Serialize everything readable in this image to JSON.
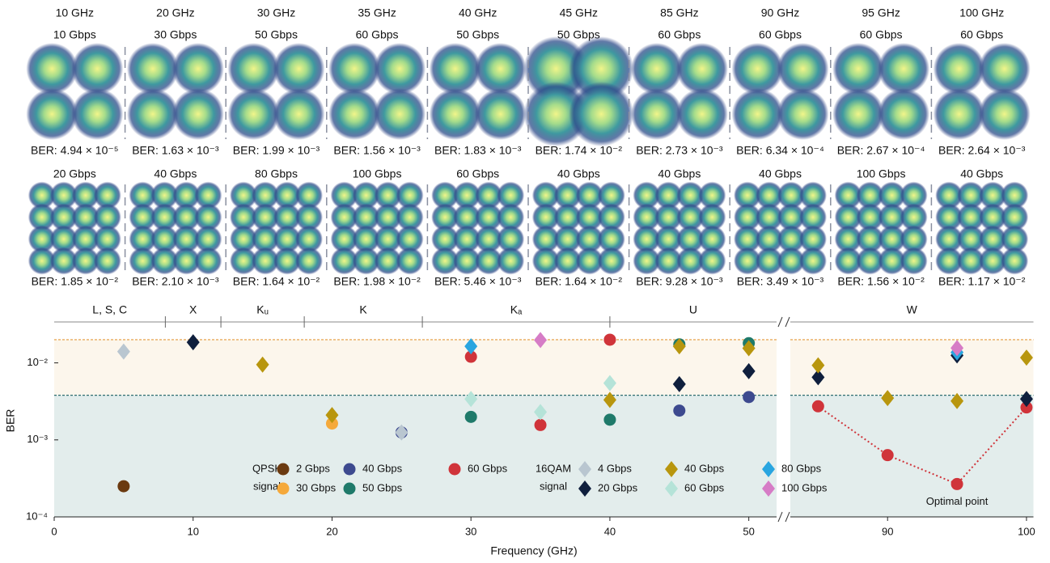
{
  "panels": {
    "row1": [
      {
        "freq": "10 GHz",
        "rate": "10 Gbps",
        "ber": "BER: 4.94 × 10⁻⁵"
      },
      {
        "freq": "20 GHz",
        "rate": "30 Gbps",
        "ber": "BER: 1.63 × 10⁻³"
      },
      {
        "freq": "30 GHz",
        "rate": "50 Gbps",
        "ber": "BER: 1.99 × 10⁻³"
      },
      {
        "freq": "35 GHz",
        "rate": "60 Gbps",
        "ber": "BER: 1.56 × 10⁻³"
      },
      {
        "freq": "40 GHz",
        "rate": "50 Gbps",
        "ber": "BER: 1.83 × 10⁻³"
      },
      {
        "freq": "45 GHz",
        "rate": "50 Gbps",
        "ber": "BER: 1.74 × 10⁻²"
      },
      {
        "freq": "85 GHz",
        "rate": "60 Gbps",
        "ber": "BER: 2.73 × 10⁻³"
      },
      {
        "freq": "90 GHz",
        "rate": "60 Gbps",
        "ber": "BER: 6.34 × 10⁻⁴"
      },
      {
        "freq": "95 GHz",
        "rate": "60 Gbps",
        "ber": "BER: 2.67 × 10⁻⁴"
      },
      {
        "freq": "100 GHz",
        "rate": "60 Gbps",
        "ber": "BER: 2.64 × 10⁻³"
      }
    ],
    "row2": [
      {
        "rate": "20 Gbps",
        "ber": "BER: 1.85 × 10⁻²"
      },
      {
        "rate": "40 Gbps",
        "ber": "BER: 2.10 × 10⁻³"
      },
      {
        "rate": "80 Gbps",
        "ber": "BER: 1.64 × 10⁻²"
      },
      {
        "rate": "100 Gbps",
        "ber": "BER: 1.98 × 10⁻²"
      },
      {
        "rate": "60 Gbps",
        "ber": "BER: 5.46 × 10⁻³"
      },
      {
        "rate": "40 Gbps",
        "ber": "BER: 1.64 × 10⁻²"
      },
      {
        "rate": "40 Gbps",
        "ber": "BER: 9.28 × 10⁻³"
      },
      {
        "rate": "40 Gbps",
        "ber": "BER: 3.49 × 10⁻³"
      },
      {
        "rate": "100 Gbps",
        "ber": "BER: 1.56 × 10⁻²"
      },
      {
        "rate": "40 Gbps",
        "ber": "BER: 1.17 × 10⁻²"
      }
    ]
  },
  "chart_data": {
    "type": "scatter",
    "x_label": "Frequency (GHz)",
    "y_label": "BER",
    "log_y": true,
    "xlim": [
      0,
      100.5
    ],
    "xbreak": [
      52,
      83
    ],
    "xticks": [
      0,
      10,
      20,
      30,
      40,
      50,
      90,
      100
    ],
    "ylim": [
      0.0001,
      0.034
    ],
    "yticks": [
      {
        "value": 0.0001,
        "label": "10⁻⁴"
      },
      {
        "value": 0.001,
        "label": "10⁻³"
      },
      {
        "value": 0.01,
        "label": "10⁻²"
      }
    ],
    "bands": [
      {
        "label": "L, S, C",
        "range": [
          0,
          8
        ]
      },
      {
        "label": "X",
        "range": [
          8,
          12
        ]
      },
      {
        "label": "Kᵤ",
        "range": [
          12,
          18
        ]
      },
      {
        "label": "K",
        "range": [
          18,
          26.5
        ]
      },
      {
        "label": "Kₐ",
        "range": [
          26.5,
          40
        ]
      },
      {
        "label": "U",
        "range": [
          40,
          52
        ]
      },
      {
        "label": "W",
        "range": [
          83,
          100.5
        ]
      }
    ],
    "thresholds": [
      {
        "value": 0.02,
        "line_color": "#e39a3b",
        "fill": "#fcf6ec"
      },
      {
        "value": 0.0038,
        "line_color": "#2e6e70",
        "fill": "#e3edec"
      }
    ],
    "legend_titles": {
      "circle": [
        "QPSK",
        "signal"
      ],
      "diamond": [
        "16QAM",
        "signal"
      ]
    },
    "series": [
      {
        "name": "2 Gbps",
        "marker": "circle",
        "color": "#6b3a10",
        "x": [
          5
        ],
        "values": [
          0.00025
        ]
      },
      {
        "name": "30 Gbps",
        "marker": "circle",
        "color": "#f5a93b",
        "x": [
          20
        ],
        "values": [
          0.00163
        ]
      },
      {
        "name": "40 Gbps",
        "marker": "circle",
        "color": "#3d4a8f",
        "x": [
          25,
          45,
          50
        ],
        "values": [
          0.00125,
          0.0024,
          0.0036
        ]
      },
      {
        "name": "50 Gbps",
        "marker": "circle",
        "color": "#1f7a6a",
        "x": [
          30,
          40,
          45,
          50
        ],
        "values": [
          0.00199,
          0.00183,
          0.0174,
          0.018
        ]
      },
      {
        "name": "60 Gbps",
        "marker": "circle",
        "color": "#d0343a",
        "line": "dotted",
        "x": [
          30,
          35,
          40,
          85,
          90,
          95,
          100
        ],
        "values": [
          0.012,
          0.00156,
          0.02,
          0.00273,
          0.000634,
          0.000267,
          0.00264
        ]
      },
      {
        "name": "4 Gbps",
        "marker": "diamond",
        "color": "#b9c6d0",
        "x": [
          5,
          25
        ],
        "values": [
          0.014,
          0.00125
        ]
      },
      {
        "name": "20 Gbps",
        "marker": "diamond",
        "color": "#0f1f3d",
        "x": [
          10,
          45,
          50,
          85,
          95,
          100
        ],
        "values": [
          0.0185,
          0.0053,
          0.0078,
          0.0065,
          0.0125,
          0.0034
        ]
      },
      {
        "name": "40 Gbps",
        "marker": "diamond",
        "color": "#b8960e",
        "x": [
          15,
          20,
          40,
          45,
          50,
          85,
          90,
          95,
          100
        ],
        "values": [
          0.0095,
          0.0021,
          0.0033,
          0.0164,
          0.0155,
          0.0093,
          0.00349,
          0.0032,
          0.0117
        ]
      },
      {
        "name": "60 Gbps",
        "marker": "diamond",
        "color": "#b5e3d8",
        "x": [
          30,
          35,
          40
        ],
        "values": [
          0.0034,
          0.0023,
          0.00546
        ]
      },
      {
        "name": "80 Gbps",
        "marker": "diamond",
        "color": "#29a5e0",
        "x": [
          30,
          95
        ],
        "values": [
          0.0164,
          0.0137
        ]
      },
      {
        "name": "100 Gbps",
        "marker": "diamond",
        "color": "#d67cc6",
        "x": [
          35,
          95
        ],
        "values": [
          0.0198,
          0.0156
        ]
      }
    ],
    "annotation": "Optimal point"
  }
}
